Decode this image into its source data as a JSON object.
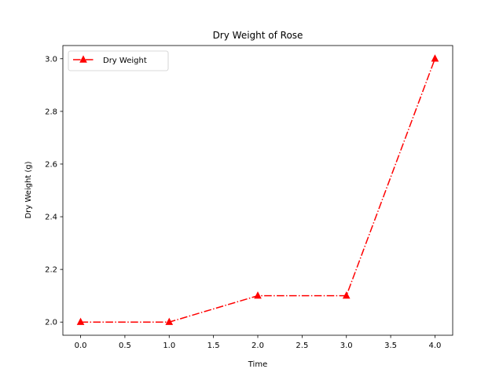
{
  "chart_data": {
    "type": "line",
    "title": "Dry Weight of Rose",
    "xlabel": "Time",
    "ylabel": "Dry Weight (g)",
    "xlim": [
      -0.2,
      4.2
    ],
    "ylim": [
      1.95,
      3.05
    ],
    "x_ticks": [
      {
        "value": 0.0,
        "label": "0.0"
      },
      {
        "value": 0.5,
        "label": "0.5"
      },
      {
        "value": 1.0,
        "label": "1.0"
      },
      {
        "value": 1.5,
        "label": "1.5"
      },
      {
        "value": 2.0,
        "label": "2.0"
      },
      {
        "value": 2.5,
        "label": "2.5"
      },
      {
        "value": 3.0,
        "label": "3.0"
      },
      {
        "value": 3.5,
        "label": "3.5"
      },
      {
        "value": 4.0,
        "label": "4.0"
      }
    ],
    "y_ticks": [
      {
        "value": 2.0,
        "label": "2.0"
      },
      {
        "value": 2.2,
        "label": "2.2"
      },
      {
        "value": 2.4,
        "label": "2.4"
      },
      {
        "value": 2.6,
        "label": "2.6"
      },
      {
        "value": 2.8,
        "label": "2.8"
      },
      {
        "value": 3.0,
        "label": "3.0"
      }
    ],
    "grid": false,
    "legend_position": "top-left",
    "series": [
      {
        "name": "Dry Weight",
        "color": "#ff0000",
        "line_style": "dash-dot",
        "marker": "triangle-up",
        "x": [
          0,
          1,
          2,
          3,
          4
        ],
        "y": [
          2.0,
          2.0,
          2.1,
          2.1,
          3.0
        ]
      }
    ]
  }
}
